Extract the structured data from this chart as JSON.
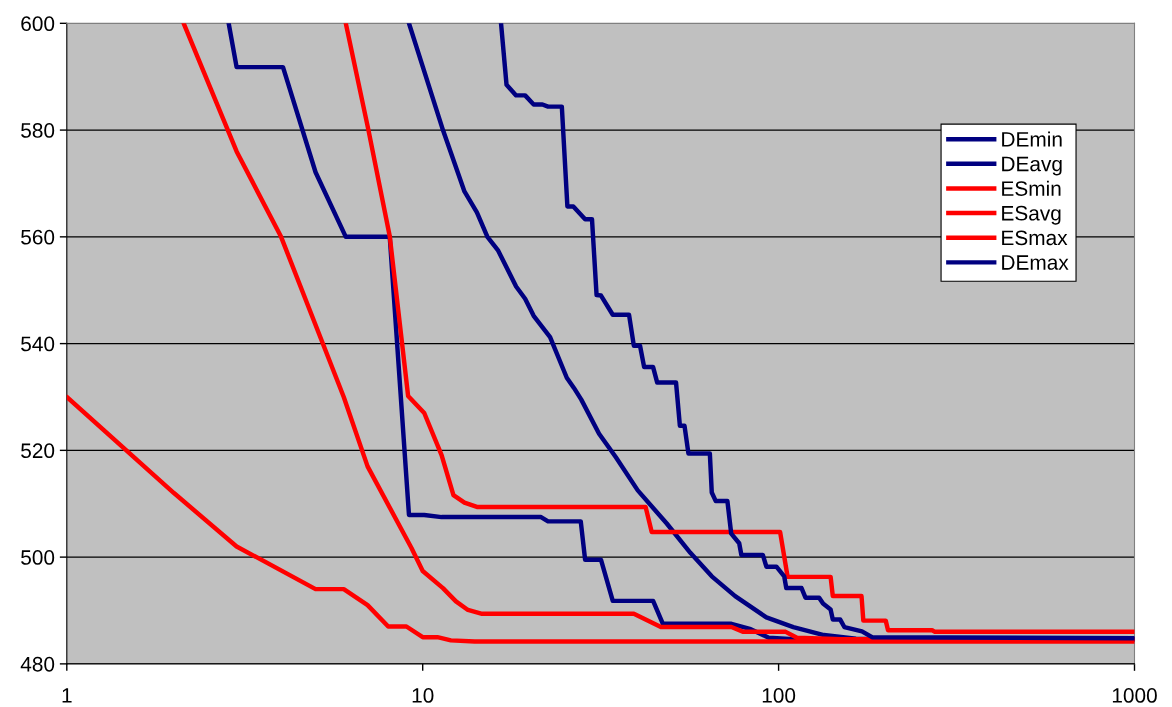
{
  "chart_data": {
    "type": "line",
    "log": "x",
    "xlim": [
      1,
      1000
    ],
    "xticks": [
      1,
      10,
      100,
      1000
    ],
    "ylim": [
      480,
      600
    ],
    "yticks": [
      480,
      500,
      520,
      540,
      560,
      580,
      600
    ],
    "grid": "y",
    "legend": "right",
    "marker": "none",
    "line_style": "solid",
    "series": [
      {
        "name": "DEmin",
        "color": "#000080",
        "x": [
          2.85,
          3,
          4.05,
          5,
          6.08,
          8.08,
          9.15,
          10.1,
          11.3,
          21.5,
          22.5,
          27.8,
          28.6,
          31.7,
          34.2,
          44.4,
          47.3,
          73.7,
          83.5,
          93.8,
          110,
          1000
        ],
        "values": [
          600,
          591.8,
          591.8,
          572.1,
          560,
          560,
          507.9,
          507.9,
          507.5,
          507.5,
          506.7,
          506.7,
          499.5,
          499.5,
          491.8,
          491.8,
          487.5,
          487.5,
          486.5,
          484.9,
          484.6,
          484.6
        ]
      },
      {
        "name": "DEavg",
        "color": "#000080",
        "x": [
          9.15,
          11.4,
          13.1,
          14.2,
          15.2,
          16.3,
          18.3,
          19.4,
          20.5,
          22.8,
          25.4,
          26.6,
          27.9,
          31.3,
          34.9,
          40.2,
          48.5,
          56.5,
          64.9,
          75.5,
          92.4,
          110,
          134,
          165,
          1000
        ],
        "values": [
          600,
          580,
          568.5,
          564.6,
          560,
          557.4,
          550.7,
          548.4,
          545.2,
          541.2,
          533.6,
          531.7,
          529.5,
          523.1,
          518.7,
          512.5,
          506.3,
          500.8,
          496.4,
          492.7,
          488.7,
          486.9,
          485.4,
          484.7,
          484.6
        ]
      },
      {
        "name": "ESmin",
        "color": "#ff0000",
        "x": [
          1,
          2,
          3,
          5,
          6,
          7,
          8,
          9,
          10,
          11,
          12,
          14,
          1000
        ],
        "values": [
          530,
          512,
          502,
          494,
          494,
          491,
          487,
          487,
          485,
          485,
          484.4,
          484.2,
          484.2
        ]
      },
      {
        "name": "ESavg",
        "color": "#ff0000",
        "x": [
          2.13,
          3,
          4,
          6,
          7,
          9.3,
          10,
          11.4,
          12.4,
          13.4,
          14.6,
          39.2,
          46.7,
          73.7,
          79.6,
          104.7,
          112.6,
          150,
          1000
        ],
        "values": [
          600,
          576,
          560,
          530,
          517,
          501.7,
          497.4,
          494.2,
          491.7,
          490.1,
          489.4,
          489.4,
          486.9,
          486.9,
          486,
          486,
          484.9,
          484.6,
          484.6
        ]
      },
      {
        "name": "ESmax",
        "color": "#ff0000",
        "x": [
          6.08,
          7.04,
          8.08,
          9.1,
          10.1,
          11.3,
          12.2,
          13.1,
          14.2,
          42.3,
          44,
          101,
          106,
          140,
          142,
          171,
          173,
          200,
          203,
          270,
          275,
          1000
        ],
        "values": [
          600,
          580,
          560.1,
          530.2,
          527,
          519.1,
          511.6,
          510.2,
          509.4,
          509.4,
          504.7,
          504.7,
          496.3,
          496.3,
          492.7,
          492.7,
          488.1,
          488.1,
          486.3,
          486.3,
          486,
          486
        ]
      },
      {
        "name": "DEmax",
        "color": "#000080",
        "x": [
          16.6,
          17.2,
          18.3,
          19.4,
          20.5,
          21.7,
          22.5,
          24.6,
          25.5,
          26.5,
          28.6,
          29.9,
          30.8,
          31.7,
          34.2,
          38,
          39.2,
          40.8,
          41.9,
          44.4,
          45.6,
          51.5,
          52.8,
          54.4,
          55.8,
          64.1,
          64.9,
          66.6,
          71.8,
          73.6,
          77.5,
          78.6,
          90.3,
          92.4,
          98.6,
          103.7,
          105.1,
          116,
          119,
          130,
          133.3,
          140,
          142,
          149,
          153,
          171.5,
          183,
          1000
        ],
        "values": [
          600,
          588.5,
          586.5,
          586.5,
          584.8,
          584.8,
          584.4,
          584.4,
          565.7,
          565.7,
          563.3,
          563.3,
          549.1,
          549,
          545.4,
          545.4,
          539.6,
          539.6,
          535.6,
          535.6,
          532.7,
          532.7,
          524.6,
          524.6,
          519.4,
          519.4,
          512.1,
          510.5,
          510.5,
          504.4,
          502.6,
          500.4,
          500.4,
          498.2,
          498.2,
          496.4,
          494.2,
          494.2,
          492.4,
          492.4,
          491.3,
          490.2,
          488.3,
          488.3,
          486.9,
          486.1,
          485,
          484.8
        ]
      }
    ]
  }
}
